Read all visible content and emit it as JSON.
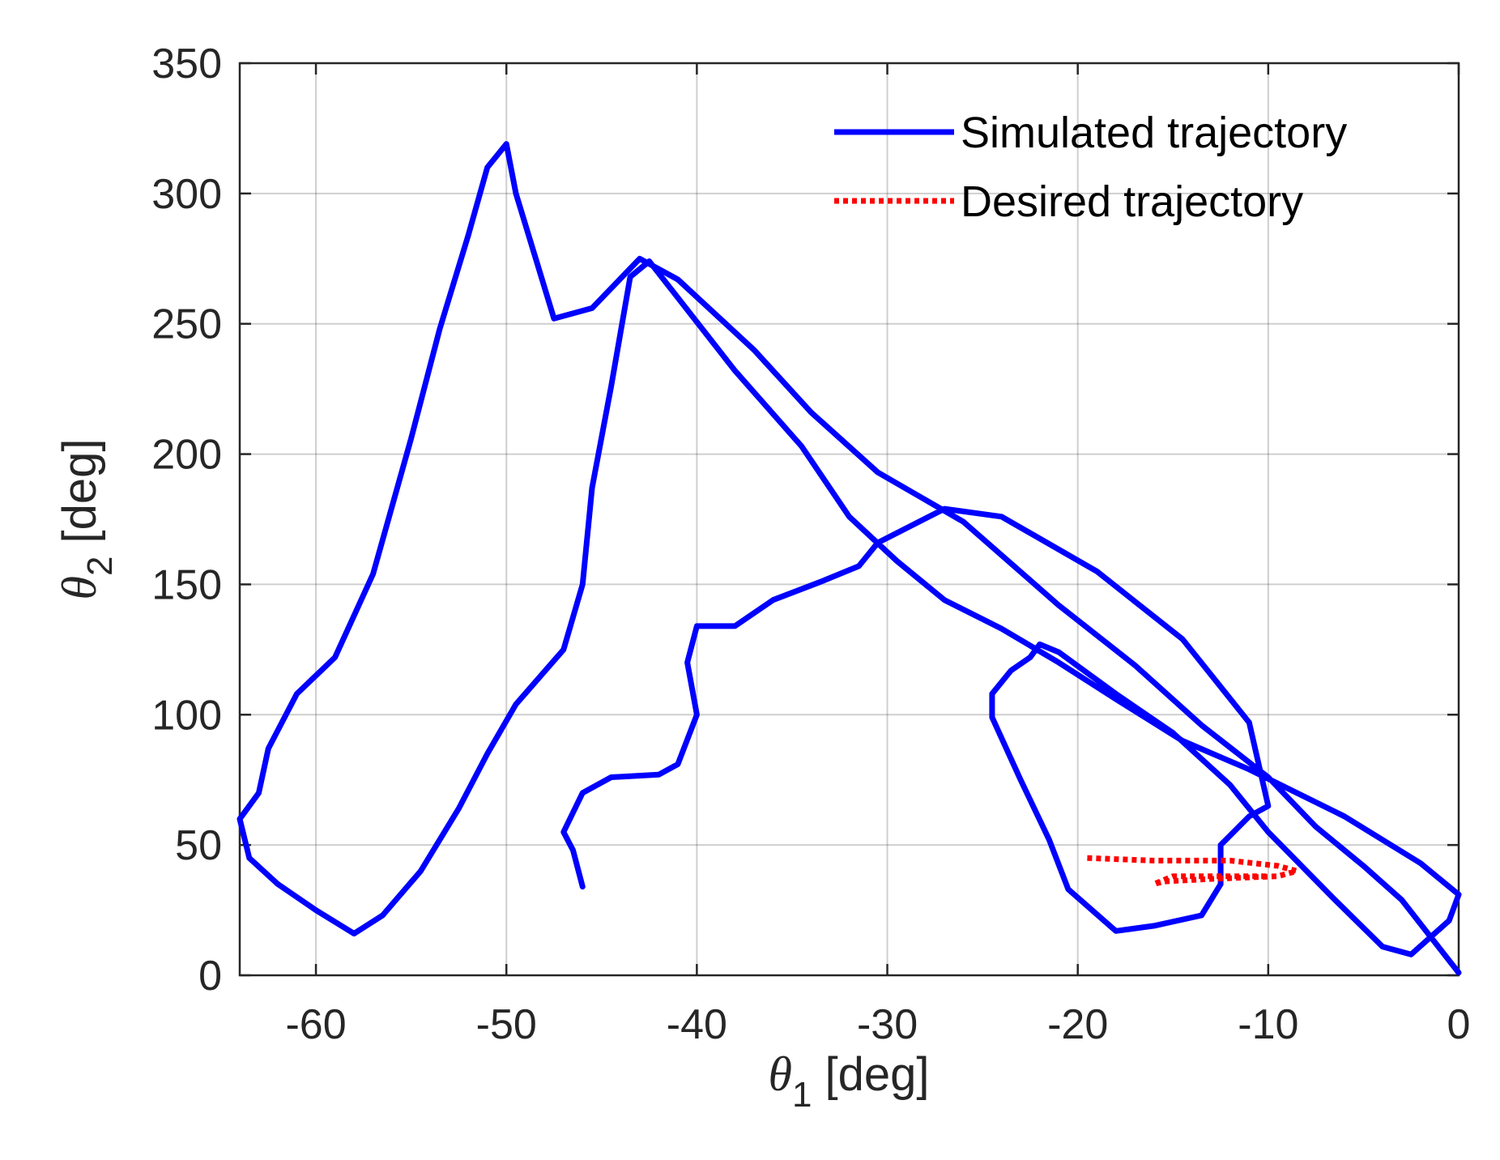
{
  "chart_data": {
    "type": "line",
    "xlabel": {
      "symbol": "θ",
      "subscript": "1",
      "unit": "[deg]"
    },
    "ylabel": {
      "symbol": "θ",
      "subscript": "2",
      "unit": "[deg]"
    },
    "xlim": [
      -64,
      0
    ],
    "ylim": [
      0,
      350
    ],
    "xticks": [
      -60,
      -50,
      -40,
      -30,
      -20,
      -10,
      0
    ],
    "yticks": [
      0,
      50,
      100,
      150,
      200,
      250,
      300,
      350
    ],
    "grid": true,
    "legend_position": "top-right",
    "series": [
      {
        "name": "Simulated trajectory",
        "color": "#0000ff",
        "style": "solid",
        "points": [
          [
            0,
            1
          ],
          [
            -1.5,
            15
          ],
          [
            -3,
            29
          ],
          [
            -5,
            42
          ],
          [
            -7.5,
            57
          ],
          [
            -10,
            76
          ],
          [
            -13.5,
            96
          ],
          [
            -17,
            119
          ],
          [
            -21,
            142
          ],
          [
            -26,
            174
          ],
          [
            -30.5,
            193
          ],
          [
            -34,
            216
          ],
          [
            -37,
            240
          ],
          [
            -41,
            267
          ],
          [
            -43,
            275
          ],
          [
            -45.5,
            256
          ],
          [
            -47.5,
            252
          ],
          [
            -49.5,
            300
          ],
          [
            -50,
            319
          ],
          [
            -51,
            310
          ],
          [
            -52,
            284
          ],
          [
            -53.5,
            248
          ],
          [
            -55,
            206
          ],
          [
            -57,
            154
          ],
          [
            -59,
            122
          ],
          [
            -61,
            108
          ],
          [
            -62.5,
            87
          ],
          [
            -63,
            70
          ],
          [
            -64,
            60
          ],
          [
            -63.5,
            45
          ],
          [
            -62,
            35
          ],
          [
            -60,
            25
          ],
          [
            -58,
            16
          ],
          [
            -56.5,
            23
          ],
          [
            -54.5,
            40
          ],
          [
            -52.5,
            64
          ],
          [
            -51,
            85
          ],
          [
            -49.5,
            104
          ],
          [
            -47,
            125
          ],
          [
            -46,
            150
          ],
          [
            -45.5,
            187
          ],
          [
            -44.5,
            226
          ],
          [
            -43.5,
            268
          ],
          [
            -42.5,
            274
          ],
          [
            -41,
            260
          ],
          [
            -38,
            232
          ],
          [
            -34.5,
            203
          ],
          [
            -32,
            176
          ],
          [
            -29.5,
            159
          ],
          [
            -27,
            144
          ],
          [
            -24,
            133
          ],
          [
            -21,
            120
          ],
          [
            -18,
            106
          ],
          [
            -14.5,
            90
          ],
          [
            -11,
            79
          ],
          [
            -6,
            61
          ],
          [
            -2,
            43
          ],
          [
            0,
            31
          ],
          [
            -0.5,
            21
          ],
          [
            -2.5,
            8
          ],
          [
            -4,
            11
          ],
          [
            -6.5,
            29
          ],
          [
            -10,
            55
          ],
          [
            -12,
            73
          ],
          [
            -15,
            93
          ],
          [
            -18,
            108
          ],
          [
            -21,
            124
          ],
          [
            -22,
            127
          ],
          [
            -22.5,
            122
          ],
          [
            -23.5,
            117
          ],
          [
            -24.5,
            108
          ],
          [
            -24.5,
            99
          ],
          [
            -23,
            75
          ],
          [
            -21.5,
            52
          ],
          [
            -20.5,
            33
          ],
          [
            -18,
            17
          ],
          [
            -16,
            19
          ],
          [
            -13.5,
            23
          ],
          [
            -12.5,
            35
          ],
          [
            -12.5,
            50
          ],
          [
            -11,
            61
          ],
          [
            -10,
            65
          ],
          [
            -11,
            97
          ],
          [
            -14.5,
            129
          ],
          [
            -19,
            155
          ],
          [
            -24,
            176
          ],
          [
            -27,
            179
          ],
          [
            -30.5,
            166
          ],
          [
            -31.5,
            157
          ],
          [
            -33.5,
            151
          ],
          [
            -36,
            144
          ],
          [
            -38,
            134
          ],
          [
            -40,
            134
          ],
          [
            -40.5,
            120
          ],
          [
            -40,
            100
          ],
          [
            -41,
            81
          ],
          [
            -42,
            77
          ],
          [
            -44.5,
            76
          ],
          [
            -46,
            70
          ],
          [
            -47,
            55
          ],
          [
            -46.5,
            48
          ],
          [
            -46,
            34
          ]
        ]
      },
      {
        "name": "Desired trajectory",
        "color": "#ff0000",
        "style": "dotted",
        "points": [
          [
            -19.5,
            45
          ],
          [
            -16,
            44
          ],
          [
            -12,
            44
          ],
          [
            -9.5,
            42
          ],
          [
            -8.5,
            40
          ],
          [
            -9.5,
            38
          ],
          [
            -13,
            37
          ],
          [
            -15.5,
            36
          ],
          [
            -16,
            35
          ],
          [
            -15,
            38
          ],
          [
            -12.5,
            38
          ],
          [
            -10,
            38
          ]
        ]
      }
    ]
  }
}
